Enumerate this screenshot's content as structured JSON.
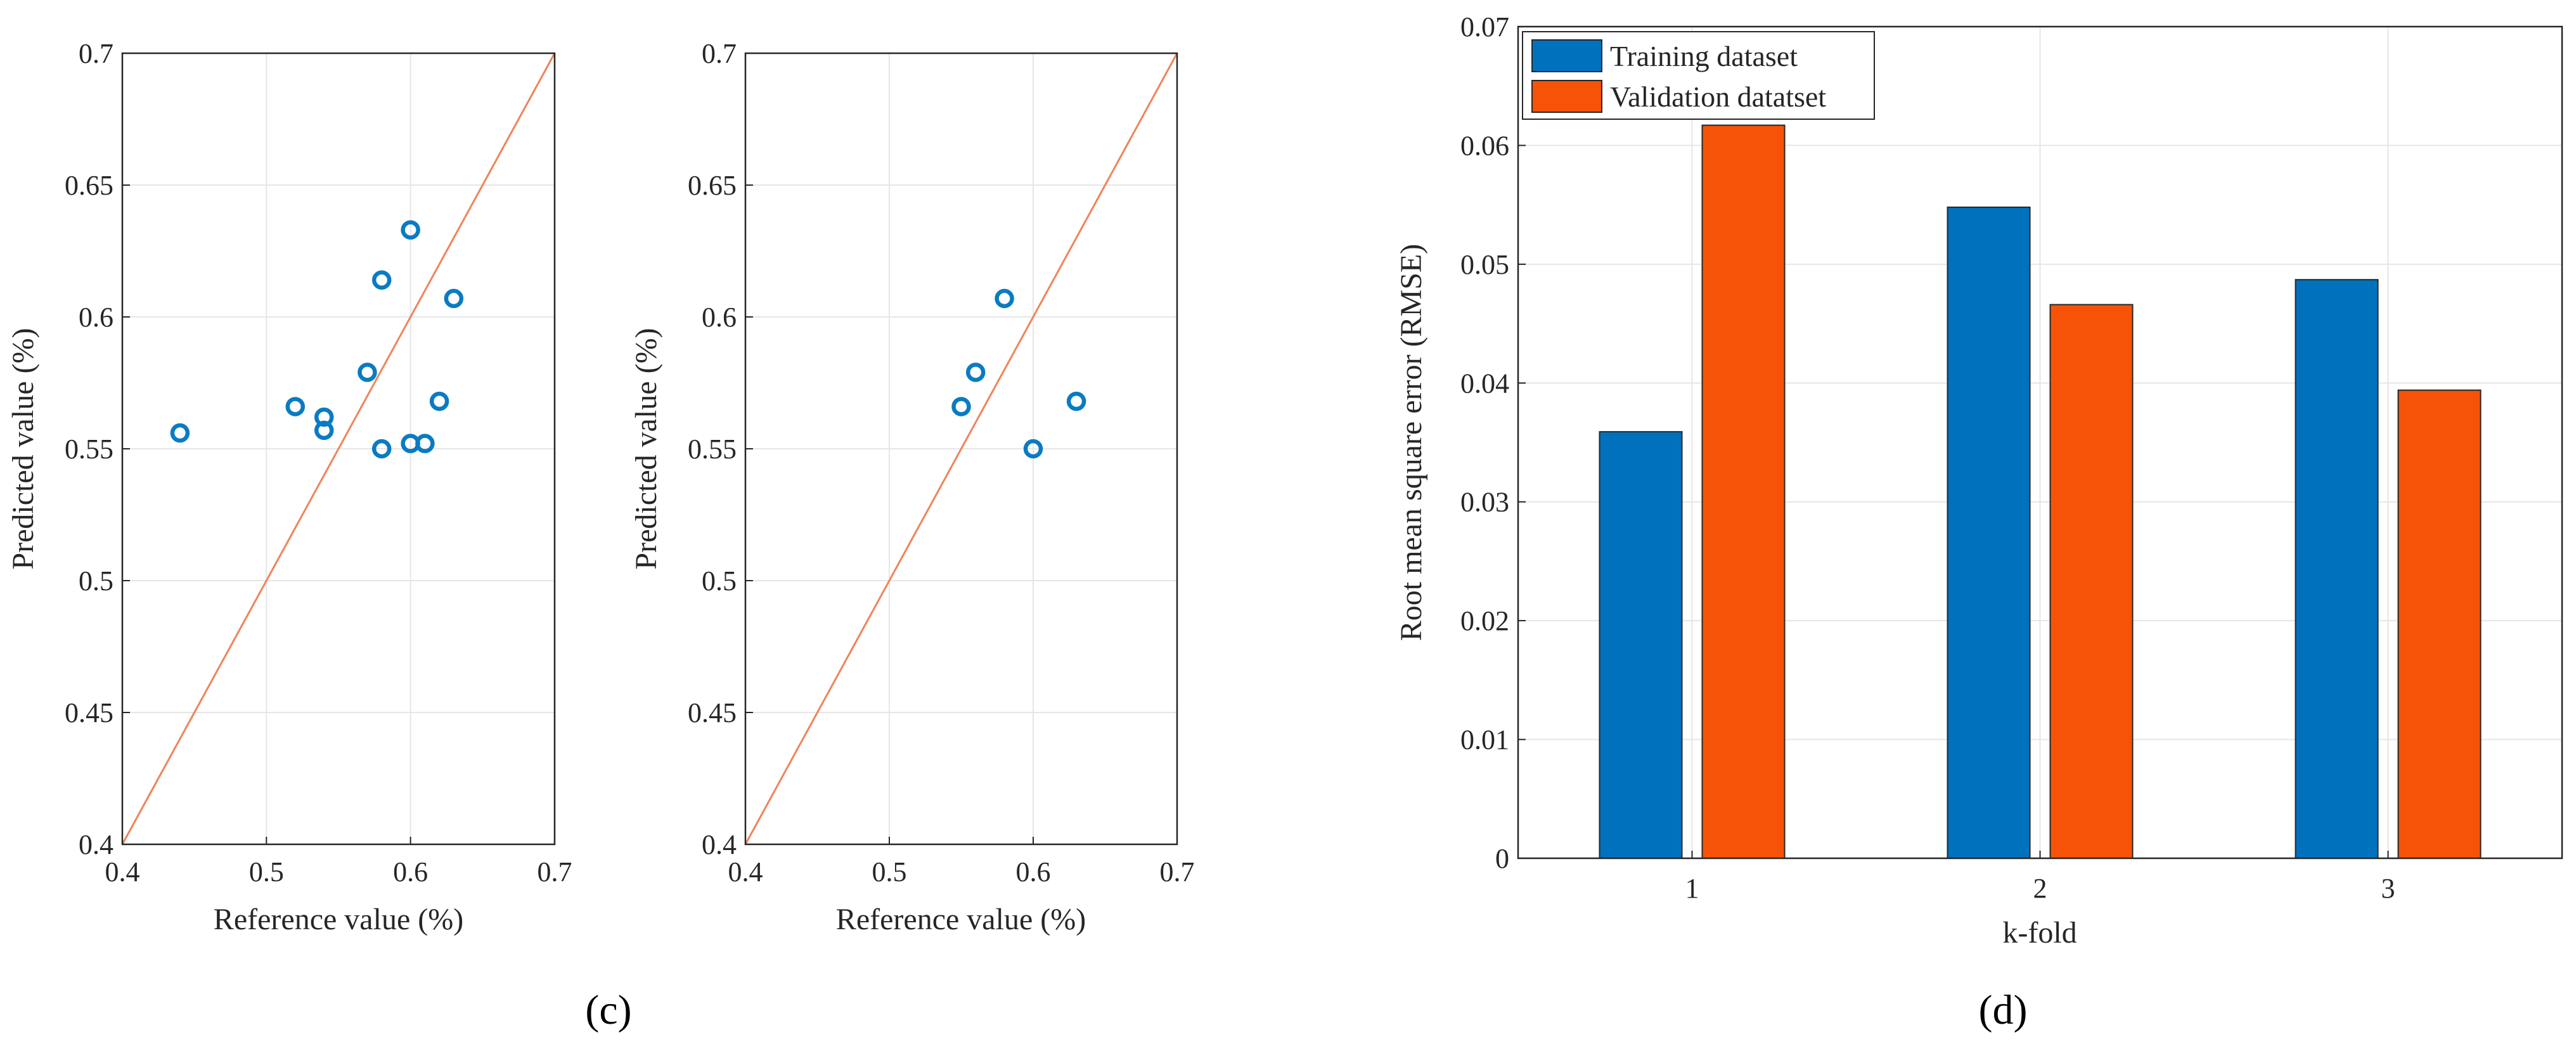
{
  "panels": {
    "c": "(c)",
    "d": "(d)"
  },
  "colors": {
    "training": "#0072bd",
    "validation": "#f75308",
    "reference_line": "#f0845a",
    "points": "#0a7bc3"
  },
  "chart_data": [
    {
      "type": "scatter",
      "xlabel": "Reference value (%)",
      "ylabel": "Predicted value (%)",
      "xlim": [
        0.4,
        0.7
      ],
      "ylim": [
        0.4,
        0.7
      ],
      "xticks": [
        "0.4",
        "0.5",
        "0.6",
        "0.7"
      ],
      "yticks": [
        "0.4",
        "0.45",
        "0.5",
        "0.55",
        "0.6",
        "0.65",
        "0.7"
      ],
      "grid": true,
      "reference_line": "y = x",
      "x": [
        0.44,
        0.52,
        0.54,
        0.54,
        0.57,
        0.58,
        0.58,
        0.6,
        0.6,
        0.61,
        0.62,
        0.63
      ],
      "y": [
        0.556,
        0.566,
        0.562,
        0.557,
        0.579,
        0.614,
        0.55,
        0.633,
        0.552,
        0.552,
        0.568,
        0.607
      ]
    },
    {
      "type": "scatter",
      "xlabel": "Reference value (%)",
      "ylabel": "Predicted value (%)",
      "xlim": [
        0.4,
        0.7
      ],
      "ylim": [
        0.4,
        0.7
      ],
      "xticks": [
        "0.4",
        "0.5",
        "0.6",
        "0.7"
      ],
      "yticks": [
        "0.4",
        "0.45",
        "0.5",
        "0.55",
        "0.6",
        "0.65",
        "0.7"
      ],
      "grid": true,
      "reference_line": "y = x",
      "x": [
        0.55,
        0.56,
        0.58,
        0.6,
        0.63
      ],
      "y": [
        0.566,
        0.579,
        0.607,
        0.55,
        0.568
      ]
    },
    {
      "type": "bar",
      "xlabel": "k-fold",
      "ylabel": "Root mean square error (RMSE)",
      "categories": [
        "1",
        "2",
        "3"
      ],
      "ylim": [
        0,
        0.07
      ],
      "yticks": [
        "0",
        "0.01",
        "0.02",
        "0.03",
        "0.04",
        "0.05",
        "0.06",
        "0.07"
      ],
      "grid": true,
      "legend_position": "top-left",
      "series": [
        {
          "name": "Training dataset",
          "values": [
            0.0359,
            0.0548,
            0.0487
          ]
        },
        {
          "name": "Validation datatset",
          "values": [
            0.0617,
            0.0466,
            0.0394
          ]
        }
      ]
    }
  ]
}
